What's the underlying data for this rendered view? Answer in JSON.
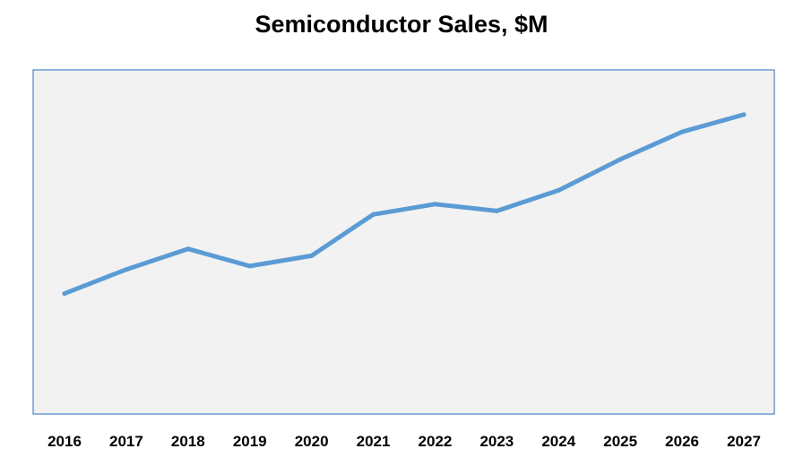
{
  "chart_data": {
    "type": "line",
    "title": "Semiconductor Sales, $M",
    "xlabel": "",
    "ylabel": "",
    "categories": [
      "2016",
      "2017",
      "2018",
      "2019",
      "2020",
      "2021",
      "2022",
      "2023",
      "2024",
      "2025",
      "2026",
      "2027"
    ],
    "series": [
      {
        "values": [
          35,
          42,
          48,
          43,
          46,
          58,
          61,
          59,
          65,
          74,
          82,
          87
        ]
      }
    ],
    "ylim": [
      0,
      100
    ],
    "grid": false,
    "legend": "none",
    "colors": {
      "line": "#5b9bd5",
      "plot_bg": "#f2f2f2",
      "plot_border": "#4a86c5"
    }
  }
}
